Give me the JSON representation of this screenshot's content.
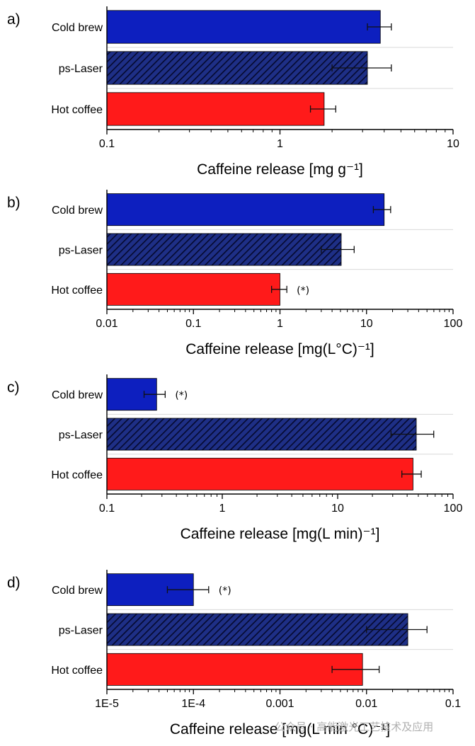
{
  "chart_data": [
    {
      "panel_label": "a)",
      "type": "bar",
      "orientation": "horizontal",
      "xscale": "log",
      "xlim": [
        0.1,
        10
      ],
      "xticks": [
        "0.1",
        "1",
        "10"
      ],
      "xlabel": "Caffeine release [mg g⁻¹]",
      "categories": [
        "Cold brew",
        "ps-Laser",
        "Hot coffee"
      ],
      "values": [
        3.8,
        3.2,
        1.8
      ],
      "error_low": [
        3.2,
        2.0,
        1.5
      ],
      "error_high": [
        4.4,
        4.4,
        2.1
      ],
      "annotations": [
        "",
        "",
        ""
      ]
    },
    {
      "panel_label": "b)",
      "type": "bar",
      "orientation": "horizontal",
      "xscale": "log",
      "xlim": [
        0.01,
        100
      ],
      "xticks": [
        "0.01",
        "0.1",
        "1",
        "10",
        "100"
      ],
      "xlabel": "Caffeine release [mg(L°C)⁻¹]",
      "categories": [
        "Cold brew",
        "ps-Laser",
        "Hot coffee"
      ],
      "values": [
        16,
        5.1,
        1.0
      ],
      "error_low": [
        12,
        3.0,
        0.8
      ],
      "error_high": [
        19,
        7.2,
        1.2
      ],
      "annotations": [
        "",
        "",
        "(*)"
      ]
    },
    {
      "panel_label": "c)",
      "type": "bar",
      "orientation": "horizontal",
      "xscale": "log",
      "xlim": [
        0.1,
        100
      ],
      "xticks": [
        "0.1",
        "1",
        "10",
        "100"
      ],
      "xlabel": "Caffeine release [mg(L min)⁻¹]",
      "categories": [
        "Cold brew",
        "ps-Laser",
        "Hot coffee"
      ],
      "values": [
        0.27,
        48,
        45
      ],
      "error_low": [
        0.21,
        29,
        36
      ],
      "error_high": [
        0.32,
        68,
        53
      ],
      "annotations": [
        "(*)",
        "",
        ""
      ]
    },
    {
      "panel_label": "d)",
      "type": "bar",
      "orientation": "horizontal",
      "xscale": "log",
      "xlim": [
        1e-05,
        0.1
      ],
      "xticks": [
        "1E-5",
        "1E-4",
        "0.001",
        "0.01",
        "0.1"
      ],
      "xlabel": "Caffeine release [mg(L min °C)⁻¹]",
      "categories": [
        "Cold brew",
        "ps-Laser",
        "Hot coffee"
      ],
      "values": [
        0.0001,
        0.03,
        0.009
      ],
      "error_low": [
        5e-05,
        0.01,
        0.004
      ],
      "error_high": [
        0.00015,
        0.05,
        0.014
      ],
      "annotations": [
        "(*)",
        "",
        ""
      ]
    }
  ],
  "colors": {
    "cold_brew": "#0d1fbf",
    "ps_laser": "#1e2f86",
    "ps_laser_hatch": "#05092e",
    "hot_coffee": "#ff1a1a",
    "axis": "#000000",
    "grid": "#d9d9d9"
  },
  "watermark": "公众号 · 高能激光工艺技术及应用"
}
